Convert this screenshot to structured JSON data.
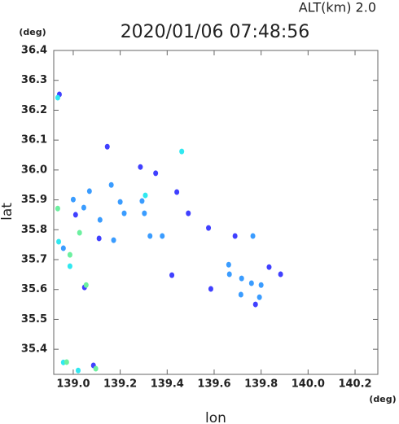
{
  "chart_data": {
    "type": "scatter",
    "title": "2020/01/06 07:48:56",
    "subtitle": "ALT(km) 2.0",
    "x_label": "lon",
    "y_label": "lat",
    "x_unit": "(deg)",
    "y_unit": "(deg)",
    "xlim": [
      138.917,
      140.297
    ],
    "ylim": [
      35.316,
      36.4
    ],
    "xticks": [
      {
        "value": 139,
        "label": "139.0"
      },
      139.2,
      139.4,
      139.6,
      139.8,
      {
        "value": 140,
        "label": "140.0"
      },
      140.2
    ],
    "yticks": [
      35.4,
      35.5,
      35.6,
      35.7,
      35.8,
      35.9,
      {
        "value": 36,
        "label": "36.0"
      },
      36.1,
      36.2,
      36.3,
      36.4
    ],
    "series": [
      {
        "color": "#4040ff",
        "x": [
          138.941,
          139.01,
          139.11,
          139.048,
          139.441,
          139.49,
          139.42,
          139.576,
          139.834,
          139.883,
          139.776,
          139.086,
          139.351,
          139.286,
          139.145,
          139.689,
          139.586
        ],
        "y": [
          36.253,
          35.85,
          35.771,
          35.607,
          35.926,
          35.855,
          35.648,
          35.806,
          35.675,
          35.651,
          35.55,
          35.346,
          35.989,
          36.01,
          36.078,
          35.779,
          35.602
        ]
      },
      {
        "color": "#3a9cff",
        "x": [
          139.0,
          139.069,
          139.045,
          139.2,
          139.217,
          139.114,
          139.172,
          139.327,
          139.293,
          139.379,
          139.662,
          139.717,
          139.759,
          139.8,
          139.714,
          139.793,
          139.665,
          139.765,
          139.303,
          139.162,
          138.958
        ],
        "y": [
          35.901,
          35.929,
          35.874,
          35.893,
          35.855,
          35.833,
          35.765,
          35.779,
          35.896,
          35.779,
          35.683,
          35.637,
          35.621,
          35.615,
          35.583,
          35.574,
          35.651,
          35.779,
          35.855,
          35.95,
          35.738
        ]
      },
      {
        "color": "#30e8f0",
        "x": [
          138.934,
          138.938,
          138.986,
          138.958,
          139.021,
          139.462,
          139.307
        ],
        "y": [
          36.242,
          35.76,
          35.678,
          35.356,
          35.329,
          36.062,
          35.915
        ]
      },
      {
        "color": "#6cf0a0",
        "x": [
          138.934,
          138.986,
          139.055,
          138.972,
          139.096,
          139.027
        ],
        "y": [
          35.871,
          35.716,
          35.615,
          35.357,
          35.335,
          35.79
        ]
      }
    ]
  }
}
